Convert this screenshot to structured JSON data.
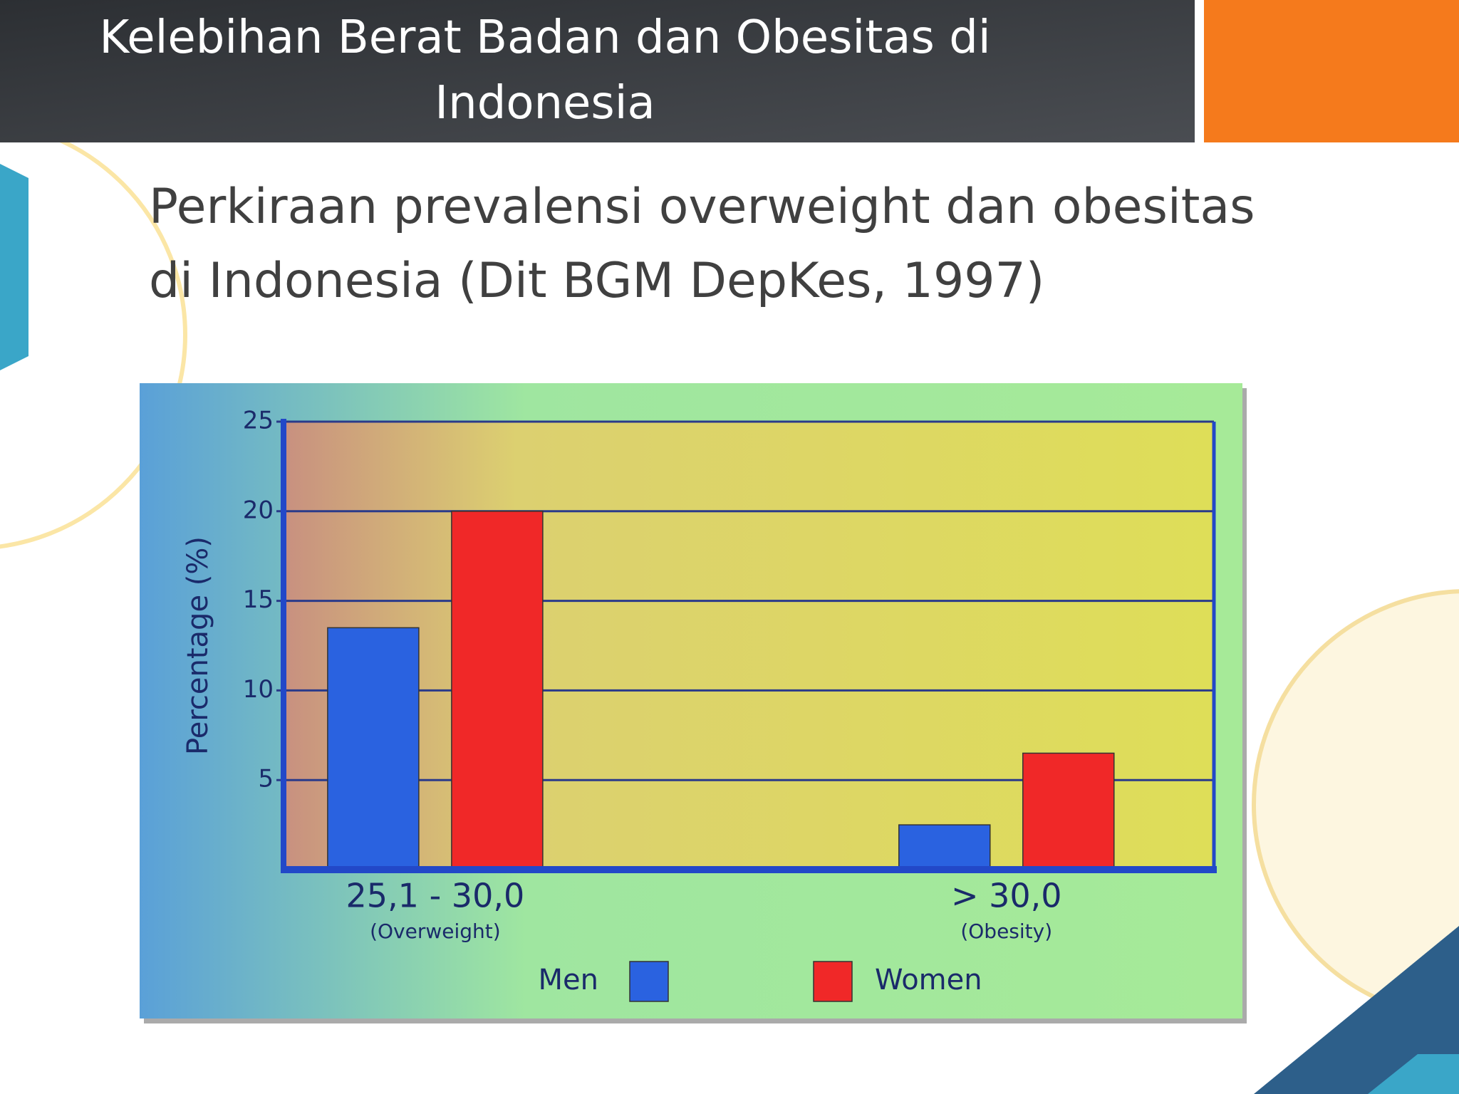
{
  "slide": {
    "title": "Kelebihan Berat Badan dan Obesitas di Indonesia",
    "subtitle": "Perkiraan prevalensi overweight dan obesitas di Indonesia (Dit BGM DepKes, 1997)"
  },
  "chart_data": {
    "type": "bar",
    "categories": [
      "25,1 - 30,0",
      "> 30,0"
    ],
    "category_notes": [
      "(Overweight)",
      "(Obesity)"
    ],
    "y_label": "Percentage (%)",
    "series": [
      {
        "name": "Men",
        "color": "#2a62e0",
        "values": [
          13.5,
          2.5
        ]
      },
      {
        "name": "Women",
        "color": "#f02828",
        "values": [
          20,
          6.5
        ]
      }
    ],
    "ylim": [
      0,
      25
    ],
    "yticks": [
      5,
      10,
      15,
      20,
      25
    ],
    "grid": true,
    "legend": "bottom"
  }
}
